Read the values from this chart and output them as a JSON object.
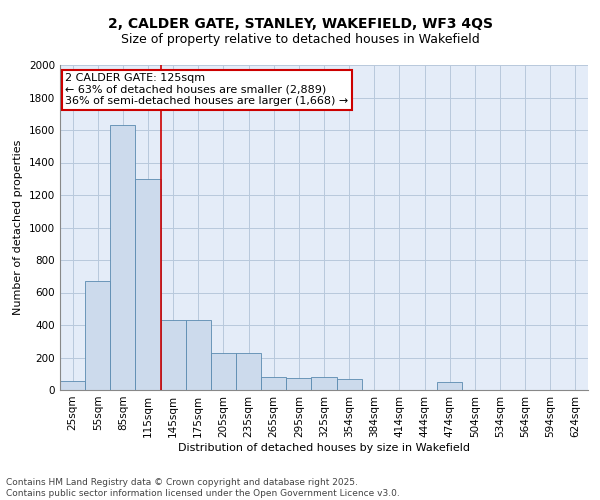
{
  "title_line1": "2, CALDER GATE, STANLEY, WAKEFIELD, WF3 4QS",
  "title_line2": "Size of property relative to detached houses in Wakefield",
  "xlabel": "Distribution of detached houses by size in Wakefield",
  "ylabel": "Number of detached properties",
  "categories": [
    "25sqm",
    "55sqm",
    "85sqm",
    "115sqm",
    "145sqm",
    "175sqm",
    "205sqm",
    "235sqm",
    "265sqm",
    "295sqm",
    "325sqm",
    "354sqm",
    "384sqm",
    "414sqm",
    "444sqm",
    "474sqm",
    "504sqm",
    "534sqm",
    "564sqm",
    "594sqm",
    "624sqm"
  ],
  "values": [
    55,
    670,
    1630,
    1300,
    430,
    430,
    230,
    230,
    80,
    75,
    80,
    65,
    0,
    0,
    0,
    50,
    0,
    0,
    0,
    0,
    0
  ],
  "bar_color": "#ccdaec",
  "bar_edge_color": "#5a8ab0",
  "vline_x_index": 3,
  "vline_color": "#cc0000",
  "annotation_text": "2 CALDER GATE: 125sqm\n← 63% of detached houses are smaller (2,889)\n36% of semi-detached houses are larger (1,668) →",
  "annotation_box_color": "white",
  "annotation_box_edge_color": "#cc0000",
  "ylim": [
    0,
    2000
  ],
  "yticks": [
    0,
    200,
    400,
    600,
    800,
    1000,
    1200,
    1400,
    1600,
    1800,
    2000
  ],
  "grid_color": "#b8c8dc",
  "bg_color": "#e4ecf8",
  "footer_text": "Contains HM Land Registry data © Crown copyright and database right 2025.\nContains public sector information licensed under the Open Government Licence v3.0.",
  "title_fontsize": 10,
  "subtitle_fontsize": 9,
  "axis_label_fontsize": 8,
  "tick_fontsize": 7.5,
  "annotation_fontsize": 8,
  "footer_fontsize": 6.5
}
